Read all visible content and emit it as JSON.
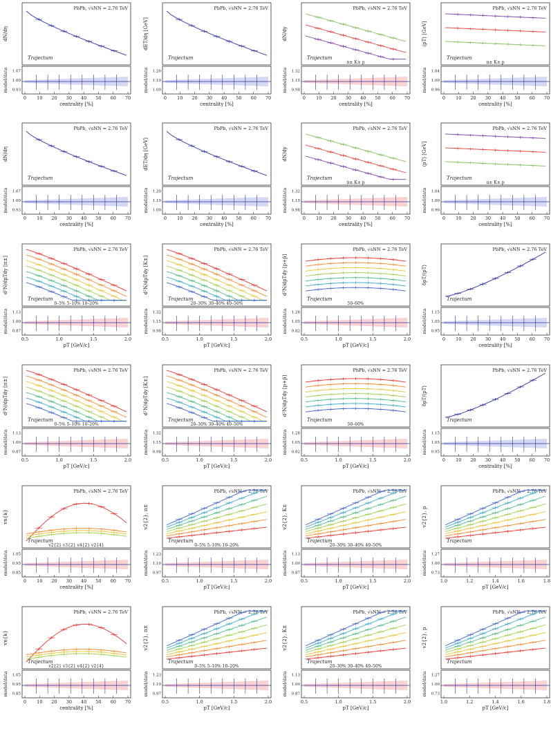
{
  "chart_data": {
    "type": "grid-of-plots",
    "rows": 6,
    "cols": 4,
    "collision": "PbPb",
    "energy_label": "PbPb, √sNN = 2.76 TeV",
    "model_name": "Trajectum",
    "ratio_ylabel": "model/data",
    "xlabel_centrality": "centrality [%]",
    "xlabel_pt": "pT [GeV/c]",
    "row_panels": [
      {
        "ylabels": [
          "dN/dη",
          "dET/dη [GeV]",
          "dN/dy",
          "⟨pT⟩ [GeV]"
        ],
        "legends": [
          "",
          "",
          "π±  K±  p",
          "π±  K±  p"
        ],
        "ratio_ylim": [
          [
            0.9,
            1.1
          ],
          [
            0.95,
            1.25
          ],
          [
            0.9,
            1.4
          ],
          [
            0.94,
            1.06
          ]
        ]
      },
      {
        "ylabels": [
          "dN/dη",
          "dET/dη [GeV]",
          "dN/dy",
          "⟨pT⟩ [GeV]"
        ],
        "legends": [
          "",
          "",
          "π±  K±  p",
          "π±  K±  p"
        ],
        "ratio_ylim": [
          [
            0.9,
            1.1
          ],
          [
            0.95,
            1.25
          ],
          [
            0.9,
            1.4
          ],
          [
            0.94,
            1.06
          ]
        ]
      },
      {
        "ylabels": [
          "d²N/dpTdy [π±]",
          "d²N/dpTdy [K±]",
          "d²N/dpTdy [p+p̄]",
          "δpT/⟨pT⟩"
        ],
        "legends": [
          "0–5%  5–10%  10–20%",
          "20–30%  30–40%  40–50%",
          "50–60%",
          ""
        ],
        "ratio_ylim": [
          [
            0.8,
            1.2
          ],
          [
            0.9,
            1.4
          ],
          [
            0.7,
            1.4
          ],
          [
            0.9,
            1.2
          ]
        ]
      },
      {
        "ylabels": [
          "d²N/dpTdy [π±]",
          "d²N/dpTdy [K±]",
          "d²N/dpTdy [p+p̄]",
          "δpT/⟨pT⟩"
        ],
        "legends": [
          "0–5%  5–10%  10–20%",
          "20–30%  30–40%  40–50%",
          "50–60%",
          ""
        ],
        "ratio_ylim": [
          [
            0.8,
            1.2
          ],
          [
            0.9,
            1.4
          ],
          [
            0.7,
            1.4
          ],
          [
            0.9,
            1.2
          ]
        ]
      },
      {
        "ylabels": [
          "vn{k}",
          "v2{2}, π±",
          "v2{2}, K±",
          "v2{2}, p"
        ],
        "legends": [
          "v2{2}  v3{2}  v4{2}  v2{4}",
          "0–5%  5–10%  10–20%",
          "20–30%  30–40%  40–50%",
          ""
        ],
        "ratio_ylim": [
          [
            0.8,
            1.1
          ],
          [
            0.9,
            1.3
          ],
          [
            0.8,
            1.2
          ],
          [
            0.6,
            1.4
          ]
        ]
      },
      {
        "ylabels": [
          "vn{k}",
          "v2{2}, π±",
          "v2{2}, K±",
          "v2{2}, p"
        ],
        "legends": [
          "v2{2}  v3{2}  v4{2}  v2{4}",
          "0–5%  5–10%  10–20%",
          "20–30%  30–40%  40–50%",
          ""
        ],
        "ratio_ylim": [
          [
            0.8,
            1.1
          ],
          [
            0.9,
            1.3
          ],
          [
            0.8,
            1.2
          ],
          [
            0.6,
            1.4
          ]
        ]
      }
    ],
    "x_ticks": {
      "centrality": [
        "0",
        "10",
        "20",
        "30",
        "40",
        "50",
        "60",
        "70"
      ],
      "pt_a": [
        "0.5",
        "1.0",
        "1.5",
        "2.0"
      ],
      "pt_b": [
        "1.0",
        "1.2",
        "1.4",
        "1.6",
        "1.8"
      ]
    },
    "series_colors": [
      "#e8312c",
      "#f08a2e",
      "#e8c532",
      "#9fcf4a",
      "#4cba7d",
      "#3aa8c9",
      "#3e63c8",
      "#7b3fa6"
    ]
  }
}
